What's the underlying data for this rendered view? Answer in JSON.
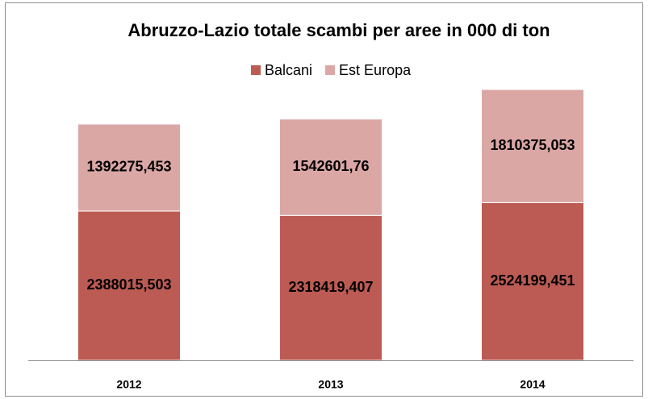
{
  "chart_data": {
    "type": "stacked_bar",
    "title": "Abruzzo-Lazio totale scambi per aree in 000 di ton",
    "categories": [
      "2012",
      "2013",
      "2014"
    ],
    "series": [
      {
        "name": "Balcani",
        "color": "#bc5b53",
        "values": [
          2388015.503,
          2318419.407,
          2524199.451
        ],
        "value_labels": [
          "2388015,503",
          "2318419,407",
          "2524199,451"
        ]
      },
      {
        "name": "Est Europa",
        "color": "#dba7a5",
        "values": [
          1392275.453,
          1542601.76,
          1810375.053
        ],
        "value_labels": [
          "1392275,453",
          "1542601,76",
          "1810375,053"
        ]
      }
    ],
    "legend": "top"
  }
}
